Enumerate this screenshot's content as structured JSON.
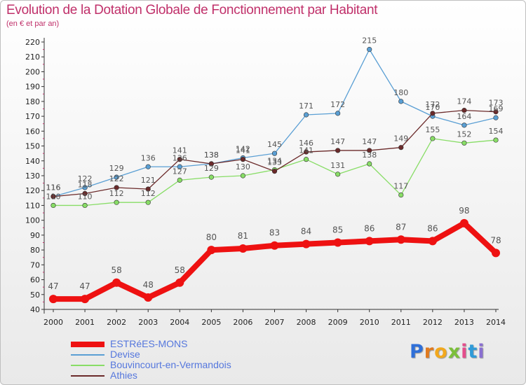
{
  "header": {
    "title": "Evolution de la Dotation Globale de Fonctionnement par Habitant",
    "subtitle": "(en € et par an)"
  },
  "logo": {
    "text": "Proxiti",
    "letters": [
      "P",
      "r",
      "o",
      "x",
      "i",
      "t",
      "i"
    ],
    "colors": [
      "#2f6fd8",
      "#e07a1f",
      "#f2a81d",
      "#7bbf3a",
      "#e44d8c",
      "#2f9ad8",
      "#8a6fd1"
    ]
  },
  "chart_data": {
    "type": "line",
    "title": "Evolution de la Dotation Globale de Fonctionnement par Habitant",
    "subtitle": "(en € et par an)",
    "x": [
      "2000",
      "2001",
      "2002",
      "2003",
      "2004",
      "2005",
      "2006",
      "2007",
      "2008",
      "2009",
      "2010",
      "2011",
      "2012",
      "2013",
      "2014"
    ],
    "ylim": [
      40,
      220
    ],
    "yticks": [
      40,
      50,
      60,
      70,
      80,
      90,
      100,
      110,
      120,
      130,
      140,
      150,
      160,
      170,
      180,
      190,
      200,
      210,
      220
    ],
    "grid": false,
    "legend_position": "bottom-left",
    "series": [
      {
        "name": "ESTRéES-MONS",
        "values": [
          47,
          47,
          58,
          48,
          58,
          80,
          81,
          83,
          84,
          85,
          86,
          87,
          86,
          98,
          78
        ],
        "color": "#ee1111"
      },
      {
        "name": "Devise",
        "values": [
          116,
          122,
          129,
          136,
          136,
          138,
          142,
          145,
          171,
          172,
          215,
          180,
          170,
          164,
          169
        ],
        "color": "#5a9fd4"
      },
      {
        "name": "Bouvincourt-en-Vermandois",
        "values": [
          110,
          110,
          112,
          112,
          127,
          129,
          130,
          134,
          141,
          131,
          138,
          117,
          155,
          152,
          154
        ],
        "color": "#88dd66"
      },
      {
        "name": "Athies",
        "values": [
          116,
          118,
          122,
          121,
          141,
          138,
          141,
          133,
          146,
          147,
          147,
          149,
          172,
          174,
          173
        ],
        "color": "#6b2a2a"
      }
    ]
  }
}
